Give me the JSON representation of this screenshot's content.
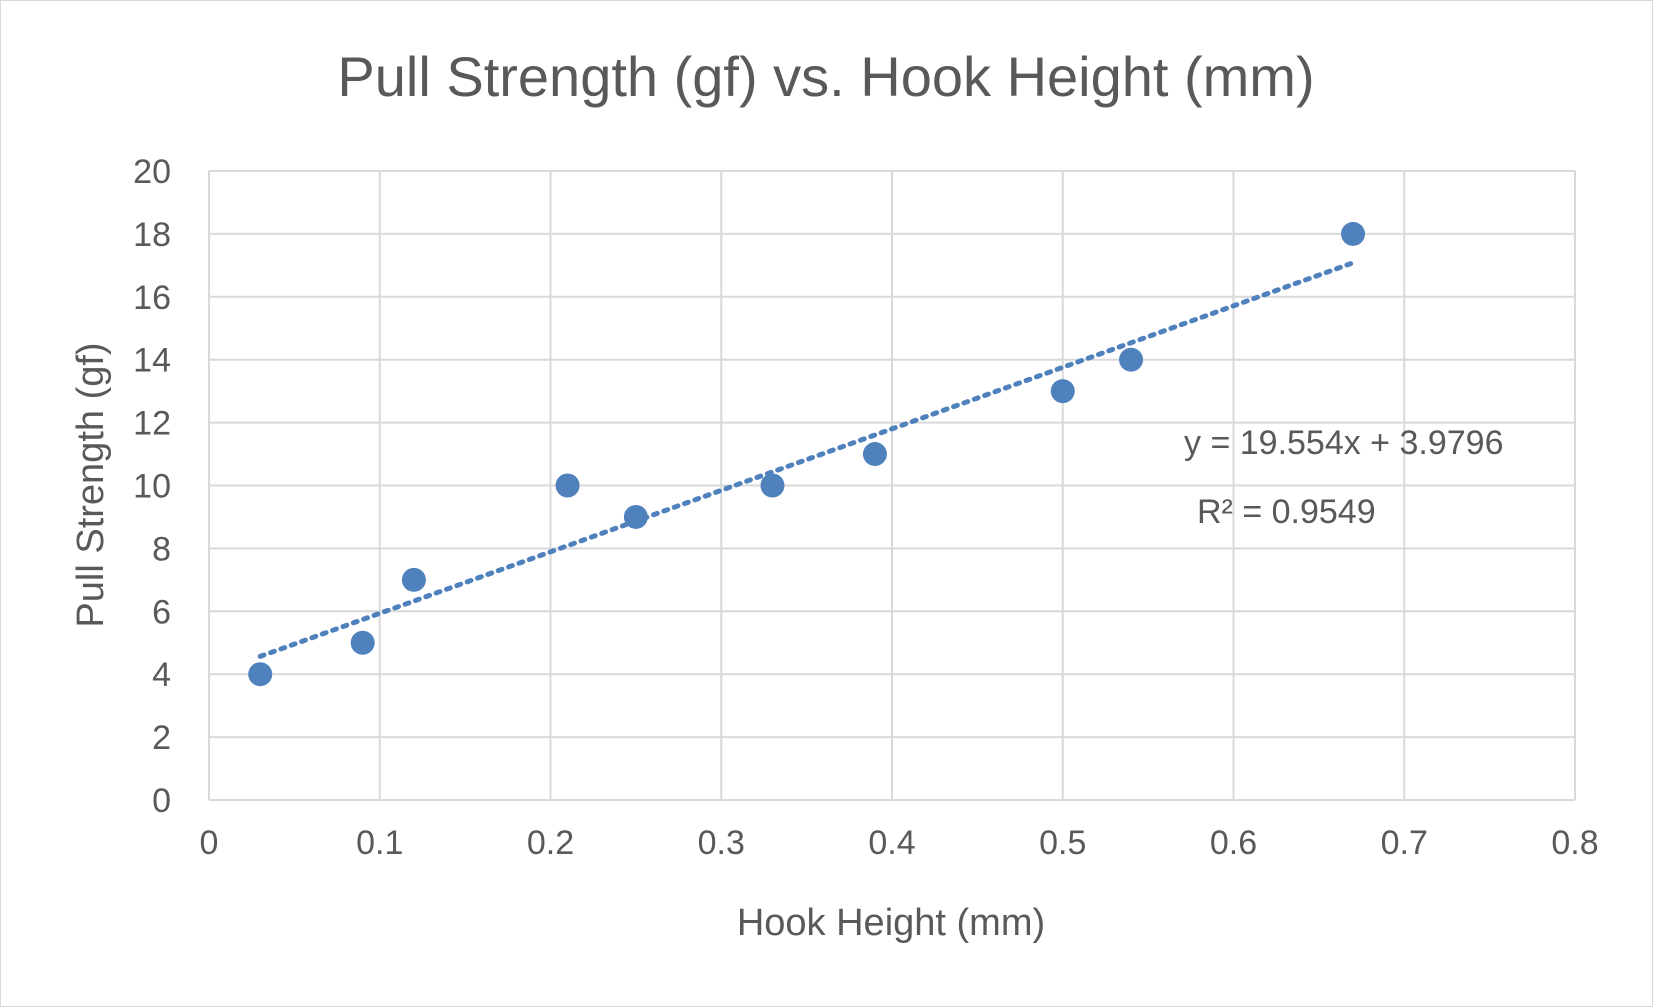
{
  "chart_data": {
    "type": "scatter",
    "title": "Pull Strength (gf) vs. Hook Height (mm)",
    "xlabel": "Hook Height (mm)",
    "ylabel": "Pull Strength (gf)",
    "xlim": [
      0,
      0.8
    ],
    "ylim": [
      0,
      20
    ],
    "x_ticks": [
      0,
      0.1,
      0.2,
      0.3,
      0.4,
      0.5,
      0.6,
      0.7,
      0.8
    ],
    "x_tick_labels": [
      "0",
      "0.1",
      "0.2",
      "0.3",
      "0.4",
      "0.5",
      "0.6",
      "0.7",
      "0.8"
    ],
    "y_ticks": [
      0,
      2,
      4,
      6,
      8,
      10,
      12,
      14,
      16,
      18,
      20
    ],
    "y_tick_labels": [
      "0",
      "2",
      "4",
      "6",
      "8",
      "10",
      "12",
      "14",
      "16",
      "18",
      "20"
    ],
    "grid": true,
    "series": [
      {
        "color": "#4f81bd",
        "points": [
          {
            "x": 0.03,
            "y": 4
          },
          {
            "x": 0.09,
            "y": 5
          },
          {
            "x": 0.12,
            "y": 7
          },
          {
            "x": 0.21,
            "y": 10
          },
          {
            "x": 0.25,
            "y": 9
          },
          {
            "x": 0.33,
            "y": 10
          },
          {
            "x": 0.39,
            "y": 11
          },
          {
            "x": 0.5,
            "y": 13
          },
          {
            "x": 0.54,
            "y": 14
          },
          {
            "x": 0.67,
            "y": 18
          }
        ]
      }
    ],
    "trendline": {
      "type": "linear",
      "style": "dotted",
      "color": "#4f81bd",
      "slope": 19.554,
      "intercept": 3.9796,
      "x_range": [
        0.03,
        0.67
      ],
      "equation_label": "y = 19.554x + 3.9796",
      "r2_label": "R² = 0.9549"
    }
  }
}
